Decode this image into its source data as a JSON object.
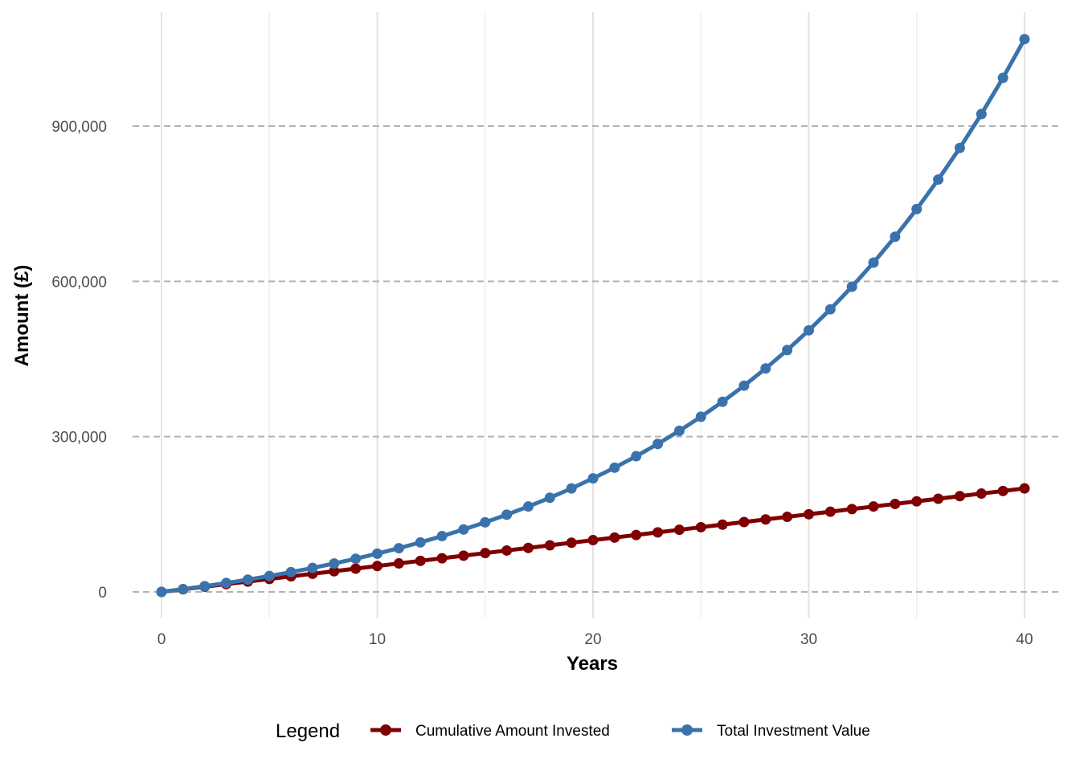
{
  "chart_data": {
    "type": "line",
    "xlabel": "Years",
    "ylabel": "Amount (£)",
    "xlim": [
      0,
      40
    ],
    "ylim": [
      0,
      1070000
    ],
    "x_ticks": [
      0,
      10,
      20,
      30,
      40
    ],
    "x_tick_labels": [
      "0",
      "10",
      "20",
      "30",
      "40"
    ],
    "y_ticks": [
      0,
      300000,
      600000,
      900000
    ],
    "y_tick_labels": [
      "0",
      "300,000",
      "600,000",
      "900,000"
    ],
    "x_minor_ticks": [
      5,
      15,
      25,
      35
    ],
    "grid": {
      "horizontal_major": "dashed",
      "vertical": "solid light"
    },
    "legend": {
      "title": "Legend",
      "position": "bottom"
    },
    "x": [
      0,
      1,
      2,
      3,
      4,
      5,
      6,
      7,
      8,
      9,
      10,
      11,
      12,
      13,
      14,
      15,
      16,
      17,
      18,
      19,
      20,
      21,
      22,
      23,
      24,
      25,
      26,
      27,
      28,
      29,
      30,
      31,
      32,
      33,
      34,
      35,
      36,
      37,
      38,
      39,
      40
    ],
    "series": [
      {
        "name": "Cumulative Amount Invested",
        "color": "#7f0000",
        "values": [
          0,
          5000,
          10000,
          15000,
          20000,
          25000,
          30000,
          35000,
          40000,
          45000,
          50000,
          55000,
          60000,
          65000,
          70000,
          75000,
          80000,
          85000,
          90000,
          95000,
          100000,
          105000,
          110000,
          115000,
          120000,
          125000,
          130000,
          135000,
          140000,
          145000,
          150000,
          155000,
          160000,
          165000,
          170000,
          175000,
          180000,
          185000,
          190000,
          195000,
          200000
        ]
      },
      {
        "name": "Total Investment Value",
        "color": "#3a72ac",
        "values": [
          0,
          5350,
          11075,
          17200,
          23754,
          30766,
          38270,
          46299,
          54890,
          64082,
          73918,
          84442,
          95703,
          107752,
          120645,
          134440,
          149201,
          164995,
          181894,
          199977,
          219325,
          240028,
          262180,
          285882,
          311244,
          338381,
          367418,
          398487,
          431730,
          467301,
          505362,
          546087,
          589664,
          636290,
          686180,
          739562,
          796681,
          857798,
          923194,
          993167,
          1068038
        ]
      }
    ]
  }
}
